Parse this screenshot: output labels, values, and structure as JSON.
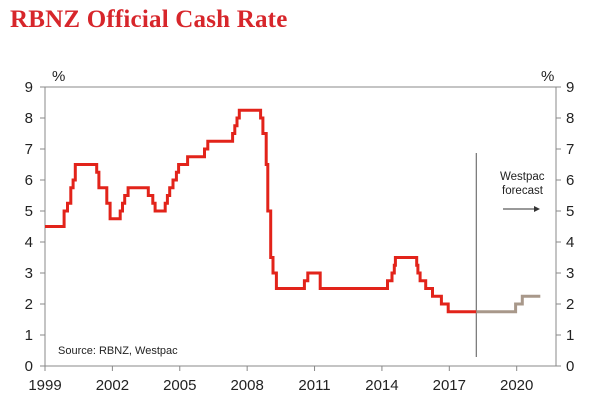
{
  "chart_data": {
    "type": "line",
    "title": "RBNZ Official Cash Rate",
    "left_unit": "%",
    "right_unit": "%",
    "source": "Source: RBNZ, Westpac",
    "forecast_label": [
      "Westpac",
      "forecast"
    ],
    "ylim": [
      0,
      9
    ],
    "y_ticks": [
      0,
      1,
      2,
      3,
      4,
      5,
      6,
      7,
      8,
      9
    ],
    "xlim": [
      1999,
      2021.75
    ],
    "x_ticks": [
      1999,
      2002,
      2005,
      2008,
      2011,
      2014,
      2017,
      2020
    ],
    "forecast_start": 2018.2,
    "colors": {
      "actual": "#e2231a",
      "forecast": "#a8988a",
      "title": "#d7262b"
    },
    "series": [
      {
        "name": "",
        "step": true,
        "points": [
          [
            1999.0,
            4.5
          ],
          [
            1999.75,
            4.5
          ],
          [
            1999.85,
            5.0
          ],
          [
            2000.0,
            5.25
          ],
          [
            2000.15,
            5.75
          ],
          [
            2000.25,
            6.0
          ],
          [
            2000.35,
            6.5
          ],
          [
            2001.2,
            6.5
          ],
          [
            2001.3,
            6.25
          ],
          [
            2001.4,
            5.75
          ],
          [
            2001.75,
            5.25
          ],
          [
            2001.9,
            4.75
          ],
          [
            2002.25,
            4.75
          ],
          [
            2002.35,
            5.0
          ],
          [
            2002.45,
            5.25
          ],
          [
            2002.55,
            5.5
          ],
          [
            2002.7,
            5.75
          ],
          [
            2003.5,
            5.75
          ],
          [
            2003.6,
            5.5
          ],
          [
            2003.8,
            5.25
          ],
          [
            2003.9,
            5.0
          ],
          [
            2004.25,
            5.0
          ],
          [
            2004.35,
            5.25
          ],
          [
            2004.45,
            5.5
          ],
          [
            2004.55,
            5.75
          ],
          [
            2004.7,
            6.0
          ],
          [
            2004.85,
            6.25
          ],
          [
            2004.95,
            6.5
          ],
          [
            2005.3,
            6.5
          ],
          [
            2005.35,
            6.75
          ],
          [
            2006.0,
            6.75
          ],
          [
            2006.1,
            7.0
          ],
          [
            2006.25,
            7.25
          ],
          [
            2007.25,
            7.25
          ],
          [
            2007.35,
            7.5
          ],
          [
            2007.45,
            7.75
          ],
          [
            2007.55,
            8.0
          ],
          [
            2007.65,
            8.25
          ],
          [
            2008.5,
            8.25
          ],
          [
            2008.6,
            8.0
          ],
          [
            2008.7,
            7.5
          ],
          [
            2008.85,
            6.5
          ],
          [
            2008.92,
            5.0
          ],
          [
            2009.05,
            3.5
          ],
          [
            2009.15,
            3.0
          ],
          [
            2009.3,
            2.5
          ],
          [
            2010.45,
            2.5
          ],
          [
            2010.55,
            2.75
          ],
          [
            2010.7,
            3.0
          ],
          [
            2011.2,
            3.0
          ],
          [
            2011.25,
            2.5
          ],
          [
            2014.15,
            2.5
          ],
          [
            2014.25,
            2.75
          ],
          [
            2014.45,
            3.0
          ],
          [
            2014.55,
            3.25
          ],
          [
            2014.6,
            3.5
          ],
          [
            2015.45,
            3.5
          ],
          [
            2015.55,
            3.25
          ],
          [
            2015.6,
            3.0
          ],
          [
            2015.7,
            2.75
          ],
          [
            2015.95,
            2.5
          ],
          [
            2016.25,
            2.25
          ],
          [
            2016.65,
            2.0
          ],
          [
            2016.95,
            1.75
          ],
          [
            2018.2,
            1.75
          ]
        ]
      },
      {
        "name": "",
        "step": true,
        "forecast": true,
        "points": [
          [
            2018.2,
            1.75
          ],
          [
            2019.85,
            1.75
          ],
          [
            2019.95,
            2.0
          ],
          [
            2020.25,
            2.25
          ],
          [
            2021.05,
            2.25
          ]
        ]
      }
    ]
  }
}
